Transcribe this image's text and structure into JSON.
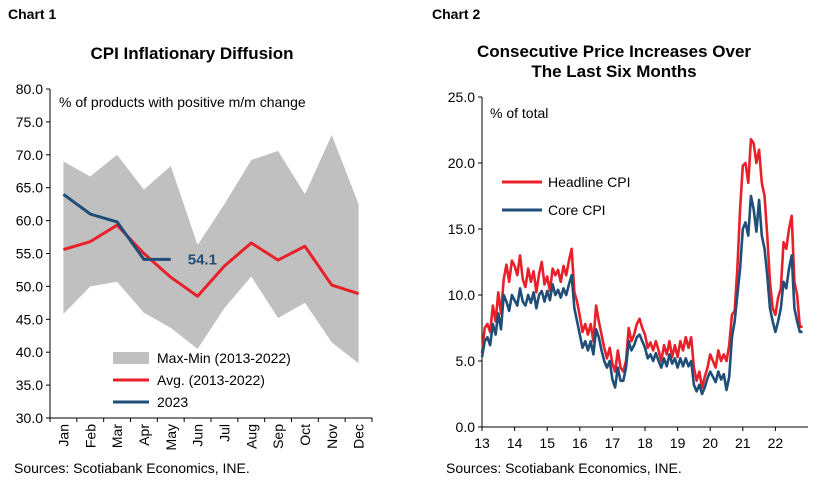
{
  "chart1": {
    "label": "Chart 1",
    "title": "CPI Inflationary Diffusion",
    "source": "Sources: Scotiabank Economics, INE.",
    "chart_data": {
      "type": "line",
      "title": "CPI Inflationary Diffusion",
      "annotation": "% of products with positive m/m change",
      "categories": [
        "Jan",
        "Feb",
        "Mar",
        "Apr",
        "May",
        "Jun",
        "Jul",
        "Aug",
        "Sep",
        "Oct",
        "Nov",
        "Dec"
      ],
      "ylim": [
        30,
        80
      ],
      "yticks": [
        30.0,
        35.0,
        40.0,
        45.0,
        50.0,
        55.0,
        60.0,
        65.0,
        70.0,
        75.0,
        80.0
      ],
      "grid": false,
      "legend_position": "bottom-left",
      "band": {
        "name": "Max-Min (2013-2022)",
        "color": "#c0c0c0",
        "max": [
          69.0,
          66.7,
          70.0,
          64.7,
          68.3,
          56.3,
          62.5,
          69.2,
          70.6,
          64.0,
          73.0,
          62.5
        ],
        "min": [
          45.8,
          50.0,
          50.7,
          46.0,
          43.7,
          40.5,
          46.7,
          51.5,
          45.2,
          47.5,
          41.5,
          38.3
        ]
      },
      "series": [
        {
          "name": "Avg. (2013-2022)",
          "color": "#e8202a",
          "values": [
            55.6,
            56.8,
            59.3,
            55.0,
            51.4,
            48.5,
            53.1,
            56.6,
            54.0,
            56.1,
            50.2,
            48.9
          ]
        },
        {
          "name": "2023",
          "color": "#1f4e79",
          "values": [
            64.0,
            61.0,
            59.8,
            54.1,
            54.1,
            null,
            null,
            null,
            null,
            null,
            null,
            null
          ]
        }
      ],
      "data_label": {
        "series": "2023",
        "index": 4,
        "text": "54.1"
      }
    }
  },
  "chart2": {
    "label": "Chart 2",
    "title_line1": "Consecutive Price Increases Over",
    "title_line2": "The Last Six Months",
    "source": "Sources: Scotiabank Economics, INE.",
    "chart_data": {
      "type": "line",
      "title": "Consecutive Price Increases Over The Last Six Months",
      "annotation": "% of total",
      "xlim": [
        2013.0,
        2023.0
      ],
      "xticks": [
        "13",
        "14",
        "15",
        "16",
        "17",
        "18",
        "19",
        "20",
        "21",
        "22"
      ],
      "ylim": [
        0,
        25
      ],
      "yticks": [
        0.0,
        5.0,
        10.0,
        15.0,
        20.0,
        25.0
      ],
      "grid": false,
      "legend_position": "top-left",
      "series": [
        {
          "name": "Headline CPI",
          "color": "#e8202a",
          "x": [
            2013.0,
            2013.083,
            2013.167,
            2013.25,
            2013.333,
            2013.417,
            2013.5,
            2013.583,
            2013.667,
            2013.75,
            2013.833,
            2013.917,
            2014.0,
            2014.083,
            2014.167,
            2014.25,
            2014.333,
            2014.417,
            2014.5,
            2014.583,
            2014.667,
            2014.75,
            2014.833,
            2014.917,
            2015.0,
            2015.083,
            2015.167,
            2015.25,
            2015.333,
            2015.417,
            2015.5,
            2015.583,
            2015.667,
            2015.75,
            2015.833,
            2015.917,
            2016.0,
            2016.083,
            2016.167,
            2016.25,
            2016.333,
            2016.417,
            2016.5,
            2016.583,
            2016.667,
            2016.75,
            2016.833,
            2016.917,
            2017.0,
            2017.083,
            2017.167,
            2017.25,
            2017.333,
            2017.417,
            2017.5,
            2017.583,
            2017.667,
            2017.75,
            2017.833,
            2017.917,
            2018.0,
            2018.083,
            2018.167,
            2018.25,
            2018.333,
            2018.417,
            2018.5,
            2018.583,
            2018.667,
            2018.75,
            2018.833,
            2018.917,
            2019.0,
            2019.083,
            2019.167,
            2019.25,
            2019.333,
            2019.417,
            2019.5,
            2019.583,
            2019.667,
            2019.75,
            2019.833,
            2019.917,
            2020.0,
            2020.083,
            2020.167,
            2020.25,
            2020.333,
            2020.417,
            2020.5,
            2020.583,
            2020.667,
            2020.75,
            2020.833,
            2020.917,
            2021.0,
            2021.083,
            2021.167,
            2021.25,
            2021.333,
            2021.417,
            2021.5,
            2021.583,
            2021.667,
            2021.75,
            2021.833,
            2021.917,
            2022.0,
            2022.083,
            2022.167,
            2022.25,
            2022.333,
            2022.417,
            2022.5,
            2022.583,
            2022.667,
            2022.75,
            2022.833
          ],
          "values": [
            5.6,
            7.5,
            7.8,
            7.2,
            9.2,
            8.0,
            10.2,
            8.6,
            11.2,
            12.3,
            11.0,
            12.6,
            12.2,
            11.5,
            13.0,
            11.2,
            10.6,
            12.0,
            11.0,
            11.8,
            10.2,
            11.6,
            12.5,
            10.8,
            11.4,
            10.3,
            12.0,
            11.5,
            11.9,
            11.0,
            12.2,
            11.5,
            12.6,
            13.5,
            10.2,
            9.5,
            8.4,
            7.2,
            7.8,
            7.0,
            7.8,
            6.5,
            9.2,
            8.0,
            7.0,
            6.0,
            5.2,
            6.0,
            4.8,
            4.2,
            5.8,
            4.5,
            4.2,
            5.0,
            7.5,
            6.5,
            7.0,
            7.8,
            8.2,
            7.5,
            7.0,
            6.0,
            6.4,
            5.8,
            6.5,
            5.8,
            5.0,
            6.2,
            5.5,
            6.5,
            5.3,
            6.2,
            5.3,
            6.5,
            5.8,
            6.8,
            6.0,
            6.8,
            4.5,
            3.5,
            4.2,
            3.0,
            3.8,
            4.5,
            5.5,
            5.0,
            4.5,
            5.8,
            5.0,
            5.5,
            5.0,
            6.2,
            8.5,
            8.8,
            12.0,
            16.5,
            19.8,
            20.0,
            18.5,
            21.8,
            21.5,
            20.0,
            21.0,
            18.5,
            17.5,
            14.5,
            11.0,
            9.0,
            8.5,
            9.8,
            10.5,
            14.0,
            13.5,
            15.0,
            16.0,
            11.0,
            10.0,
            7.6,
            7.6
          ]
        },
        {
          "name": "Core CPI",
          "color": "#1f4e79",
          "x": [
            2013.0,
            2013.083,
            2013.167,
            2013.25,
            2013.333,
            2013.417,
            2013.5,
            2013.583,
            2013.667,
            2013.75,
            2013.833,
            2013.917,
            2014.0,
            2014.083,
            2014.167,
            2014.25,
            2014.333,
            2014.417,
            2014.5,
            2014.583,
            2014.667,
            2014.75,
            2014.833,
            2014.917,
            2015.0,
            2015.083,
            2015.167,
            2015.25,
            2015.333,
            2015.417,
            2015.5,
            2015.583,
            2015.667,
            2015.75,
            2015.833,
            2015.917,
            2016.0,
            2016.083,
            2016.167,
            2016.25,
            2016.333,
            2016.417,
            2016.5,
            2016.583,
            2016.667,
            2016.75,
            2016.833,
            2016.917,
            2017.0,
            2017.083,
            2017.167,
            2017.25,
            2017.333,
            2017.417,
            2017.5,
            2017.583,
            2017.667,
            2017.75,
            2017.833,
            2017.917,
            2018.0,
            2018.083,
            2018.167,
            2018.25,
            2018.333,
            2018.417,
            2018.5,
            2018.583,
            2018.667,
            2018.75,
            2018.833,
            2018.917,
            2019.0,
            2019.083,
            2019.167,
            2019.25,
            2019.333,
            2019.417,
            2019.5,
            2019.583,
            2019.667,
            2019.75,
            2019.833,
            2019.917,
            2020.0,
            2020.083,
            2020.167,
            2020.25,
            2020.333,
            2020.417,
            2020.5,
            2020.583,
            2020.667,
            2020.75,
            2020.833,
            2020.917,
            2021.0,
            2021.083,
            2021.167,
            2021.25,
            2021.333,
            2021.417,
            2021.5,
            2021.583,
            2021.667,
            2021.75,
            2021.833,
            2021.917,
            2022.0,
            2022.083,
            2022.167,
            2022.25,
            2022.333,
            2022.417,
            2022.5,
            2022.583,
            2022.667,
            2022.75,
            2022.833
          ],
          "values": [
            5.3,
            6.5,
            6.8,
            6.2,
            7.8,
            7.0,
            8.6,
            7.4,
            10.0,
            9.5,
            8.8,
            10.0,
            9.6,
            9.2,
            10.5,
            9.5,
            9.2,
            10.0,
            9.4,
            10.2,
            9.0,
            10.0,
            10.3,
            9.5,
            10.3,
            9.6,
            10.8,
            10.0,
            10.4,
            9.8,
            10.5,
            10.0,
            10.8,
            11.5,
            9.0,
            8.0,
            7.0,
            6.0,
            6.5,
            5.8,
            6.5,
            5.5,
            7.4,
            6.8,
            5.8,
            5.0,
            4.5,
            5.0,
            3.6,
            3.0,
            4.5,
            3.5,
            3.5,
            4.5,
            6.5,
            5.8,
            6.2,
            6.8,
            7.0,
            6.5,
            6.0,
            5.2,
            5.5,
            5.0,
            5.6,
            5.0,
            4.5,
            5.2,
            4.6,
            5.5,
            4.8,
            5.2,
            4.5,
            5.2,
            4.6,
            5.2,
            4.6,
            5.0,
            3.2,
            2.7,
            3.2,
            2.5,
            3.0,
            3.7,
            4.2,
            3.8,
            3.4,
            4.2,
            3.6,
            4.0,
            2.8,
            3.8,
            6.8,
            8.0,
            10.0,
            12.0,
            15.0,
            15.5,
            14.5,
            17.5,
            16.5,
            14.8,
            17.2,
            14.5,
            13.5,
            11.5,
            9.0,
            8.0,
            7.2,
            8.0,
            9.0,
            11.0,
            10.5,
            12.0,
            13.0,
            9.0,
            8.0,
            7.2,
            7.2
          ]
        }
      ]
    }
  }
}
